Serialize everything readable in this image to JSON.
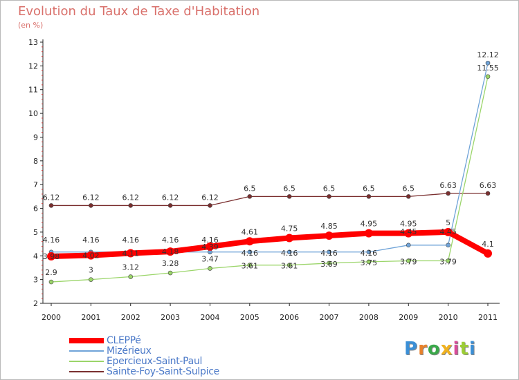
{
  "title": "Evolution du Taux de Taxe d'Habitation",
  "unit_label": "(en %)",
  "brand": {
    "text": "Proxiti",
    "letter_colors": [
      "#3b8fd6",
      "#e8812b",
      "#3aa84a",
      "#f0b21f",
      "#d94c9a",
      "#9ccd35",
      "#3b8fd6"
    ]
  },
  "chart_data": {
    "type": "line",
    "x": [
      "2000",
      "2001",
      "2002",
      "2003",
      "2004",
      "2005",
      "2006",
      "2007",
      "2008",
      "2009",
      "2010",
      "2011"
    ],
    "ylim": [
      2,
      13
    ],
    "yticks": [
      2,
      3,
      4,
      5,
      6,
      7,
      8,
      9,
      10,
      11,
      12,
      13
    ],
    "grid": false,
    "legend_position": "bottom-left",
    "series": [
      {
        "name": "CLEPPé",
        "color": "#ff0000",
        "width": 8,
        "values": [
          3.98,
          4.02,
          4.11,
          4.18,
          4.39,
          4.61,
          4.75,
          4.85,
          4.95,
          4.95,
          5.0,
          4.1
        ],
        "labels": [
          "3.98",
          "4.02",
          "4.11",
          "4.18",
          "4.39",
          "4.61",
          "4.75",
          "4.85",
          "4.95",
          "4.95",
          "5",
          "4.1"
        ]
      },
      {
        "name": "Mizérieux",
        "color": "#6fa3d8",
        "width": 1.3,
        "values": [
          4.16,
          4.16,
          4.16,
          4.16,
          4.16,
          4.16,
          4.16,
          4.16,
          4.16,
          4.45,
          4.45,
          12.12
        ],
        "labels": [
          "4.16",
          "4.16",
          "4.16",
          "4.16",
          "4.16",
          "4.16",
          "4.16",
          "4.16",
          "4.16",
          "4.45",
          "4.45",
          "12.12"
        ]
      },
      {
        "name": "Epercieux-Saint-Paul",
        "color": "#9bd56a",
        "width": 1.3,
        "values": [
          2.9,
          3.0,
          3.12,
          3.28,
          3.47,
          3.61,
          3.61,
          3.69,
          3.75,
          3.79,
          3.79,
          11.55
        ],
        "labels": [
          "2.9",
          "3",
          "3.12",
          "3.28",
          "3.47",
          "3.61",
          "3.61",
          "3.69",
          "3.75",
          "3.79",
          "3.79",
          "11.55"
        ]
      },
      {
        "name": "Sainte-Foy-Saint-Sulpice",
        "color": "#7a2f2f",
        "width": 1.3,
        "values": [
          6.12,
          6.12,
          6.12,
          6.12,
          6.12,
          6.5,
          6.5,
          6.5,
          6.5,
          6.5,
          6.63,
          6.63
        ],
        "labels": [
          "6.12",
          "6.12",
          "6.12",
          "6.12",
          "6.12",
          "6.5",
          "6.5",
          "6.5",
          "6.5",
          "6.5",
          "6.63",
          "6.63"
        ]
      }
    ]
  }
}
